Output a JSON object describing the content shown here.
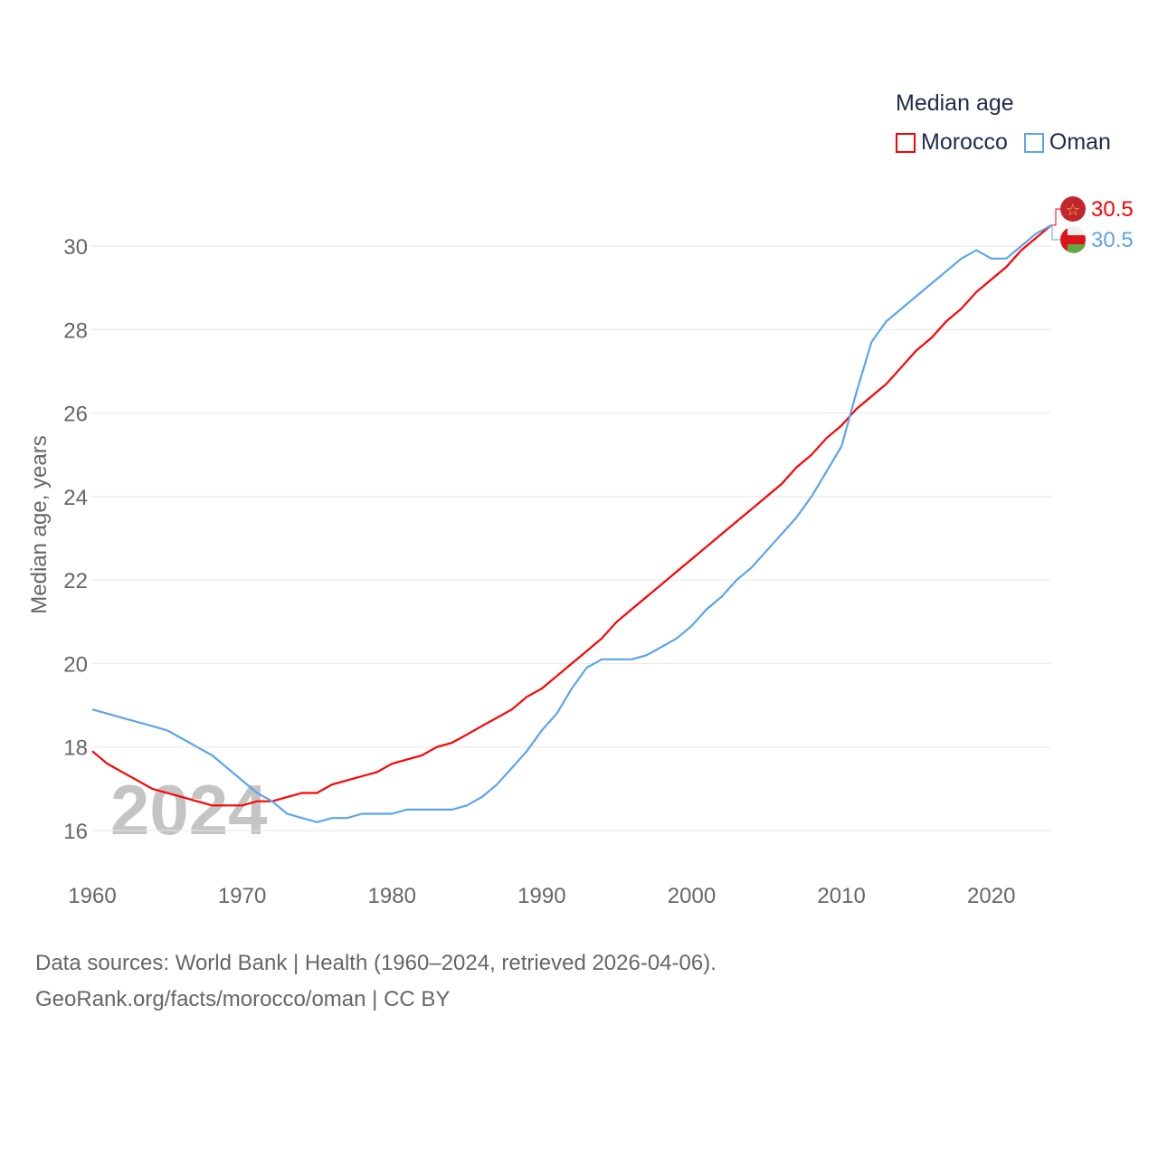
{
  "chart_data": {
    "type": "line",
    "title": "Median age",
    "xlabel": "",
    "ylabel": "Median age, years",
    "xlim": [
      1960,
      2024
    ],
    "ylim": [
      16,
      30
    ],
    "x_ticks": [
      "1960",
      "1970",
      "1980",
      "1990",
      "2000",
      "2010",
      "2020"
    ],
    "y_ticks": [
      "16",
      "18",
      "20",
      "22",
      "24",
      "26",
      "28",
      "30"
    ],
    "grid": true,
    "legend_position": "top-right",
    "year_watermark": "2024",
    "x": [
      1960,
      1961,
      1962,
      1963,
      1964,
      1965,
      1966,
      1967,
      1968,
      1969,
      1970,
      1971,
      1972,
      1973,
      1974,
      1975,
      1976,
      1977,
      1978,
      1979,
      1980,
      1981,
      1982,
      1983,
      1984,
      1985,
      1986,
      1987,
      1988,
      1989,
      1990,
      1991,
      1992,
      1993,
      1994,
      1995,
      1996,
      1997,
      1998,
      1999,
      2000,
      2001,
      2002,
      2003,
      2004,
      2005,
      2006,
      2007,
      2008,
      2009,
      2010,
      2011,
      2012,
      2013,
      2014,
      2015,
      2016,
      2017,
      2018,
      2019,
      2020,
      2021,
      2022,
      2023,
      2024
    ],
    "series": [
      {
        "name": "Morocco",
        "color": "#ff0000",
        "end_label": "30.5",
        "values": [
          17.9,
          17.6,
          17.4,
          17.2,
          17.0,
          16.9,
          16.8,
          16.7,
          16.6,
          16.6,
          16.6,
          16.7,
          16.7,
          16.8,
          16.9,
          16.9,
          17.1,
          17.2,
          17.3,
          17.4,
          17.6,
          17.7,
          17.8,
          18.0,
          18.1,
          18.3,
          18.5,
          18.7,
          18.9,
          19.2,
          19.4,
          19.7,
          20.0,
          20.3,
          20.6,
          21.0,
          21.3,
          21.6,
          21.9,
          22.2,
          22.5,
          22.8,
          23.1,
          23.4,
          23.7,
          24.0,
          24.3,
          24.7,
          25.0,
          25.4,
          25.7,
          26.1,
          26.4,
          26.7,
          27.1,
          27.5,
          27.8,
          28.2,
          28.5,
          28.9,
          29.2,
          29.5,
          29.9,
          30.2,
          30.5
        ]
      },
      {
        "name": "Oman",
        "color": "#5ba4ee",
        "end_label": "30.5",
        "values": [
          18.9,
          18.8,
          18.7,
          18.6,
          18.5,
          18.4,
          18.2,
          18.0,
          17.8,
          17.5,
          17.2,
          16.9,
          16.7,
          16.4,
          16.3,
          16.2,
          16.3,
          16.3,
          16.4,
          16.4,
          16.4,
          16.5,
          16.5,
          16.5,
          16.5,
          16.6,
          16.8,
          17.1,
          17.5,
          17.9,
          18.4,
          18.8,
          19.4,
          19.9,
          20.1,
          20.1,
          20.1,
          20.2,
          20.4,
          20.6,
          20.9,
          21.3,
          21.6,
          22.0,
          22.3,
          22.7,
          23.1,
          23.5,
          24.0,
          24.6,
          25.2,
          26.5,
          27.7,
          28.2,
          28.5,
          28.8,
          29.1,
          29.4,
          29.7,
          29.9,
          29.7,
          29.7,
          30.0,
          30.3,
          30.5
        ]
      }
    ]
  },
  "footer": {
    "line1": "Data sources: World Bank | Health (1960–2024, retrieved 2026-04-06).",
    "line2": "GeoRank.org/facts/morocco/oman | CC BY"
  }
}
